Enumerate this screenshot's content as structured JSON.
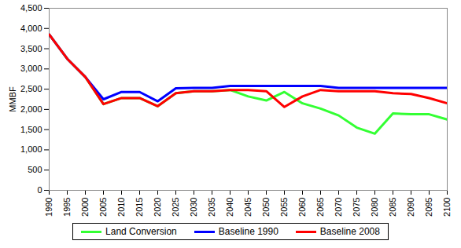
{
  "chart_data": {
    "type": "line",
    "y_label": "MMBF",
    "categories": [
      "1990",
      "1995",
      "2000",
      "2005",
      "2010",
      "2015",
      "2020",
      "2025",
      "2030",
      "2035",
      "2040",
      "2045",
      "2050",
      "2055",
      "2060",
      "2065",
      "2070",
      "2075",
      "2080",
      "2085",
      "2090",
      "2095",
      "2100"
    ],
    "series": [
      {
        "name": "Land Conversion",
        "color": "#33ff33",
        "values": [
          3850,
          3250,
          2800,
          2130,
          2280,
          2280,
          2080,
          2400,
          2450,
          2450,
          2480,
          2320,
          2220,
          2430,
          2150,
          2020,
          1850,
          1550,
          1400,
          1900,
          1880,
          1880,
          1750
        ]
      },
      {
        "name": "Baseline 1990",
        "color": "#0000ff",
        "values": [
          3850,
          3250,
          2800,
          2250,
          2430,
          2430,
          2200,
          2520,
          2530,
          2530,
          2580,
          2580,
          2580,
          2580,
          2580,
          2580,
          2530,
          2530,
          2530,
          2530,
          2530,
          2530,
          2530
        ]
      },
      {
        "name": "Baseline 2008",
        "color": "#ff0000",
        "values": [
          3850,
          3250,
          2800,
          2130,
          2280,
          2280,
          2080,
          2400,
          2450,
          2450,
          2480,
          2480,
          2450,
          2060,
          2320,
          2480,
          2450,
          2450,
          2450,
          2400,
          2380,
          2280,
          2150
        ]
      }
    ],
    "ylim": [
      0,
      4500
    ],
    "yticks": [
      0,
      500,
      {
        "value": 1000,
        "label": "1,000"
      },
      {
        "value": 1500,
        "label": "1,500"
      },
      {
        "value": 2000,
        "label": "2,000"
      },
      {
        "value": 2500,
        "label": "2,500"
      },
      {
        "value": 3000,
        "label": "3,000"
      },
      {
        "value": 3500,
        "label": "3,500"
      },
      {
        "value": 4000,
        "label": "4,000"
      },
      {
        "value": 4500,
        "label": "4,500"
      }
    ],
    "grid": false,
    "legend": "bottom"
  }
}
